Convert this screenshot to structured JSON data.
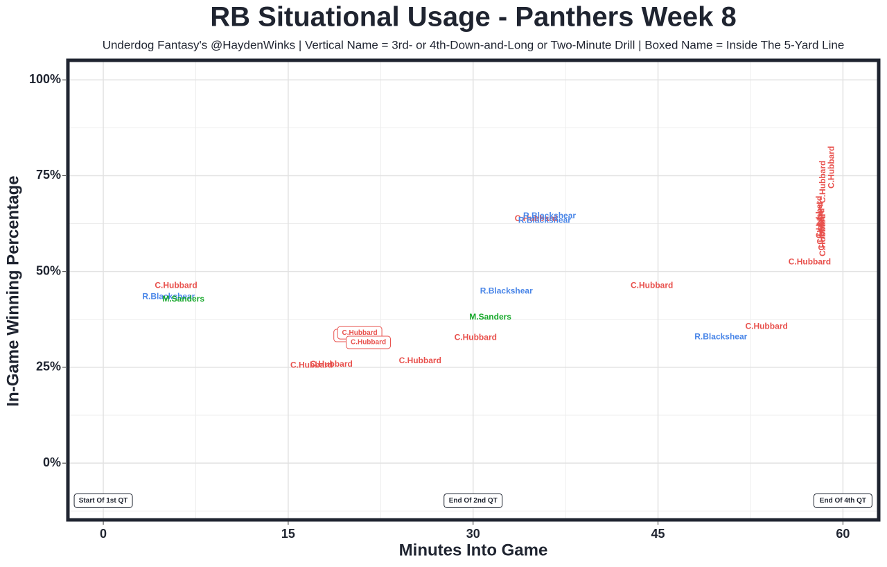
{
  "chart_data": {
    "type": "scatter",
    "title": "RB Situational Usage - Panthers Week 8",
    "subtitle": "Underdog Fantasy's @HaydenWinks | Vertical Name = 3rd- or 4th-Down-and-Long or Two-Minute Drill | Boxed Name = Inside The 5-Yard Line",
    "x_label": "Minutes Into Game",
    "y_label": "In-Game Winning Percentage",
    "xlim": [
      -2.87,
      62.9
    ],
    "ylim": [
      -14.8,
      105.1
    ],
    "xticks": [
      0,
      15,
      30,
      45,
      60
    ],
    "yticks": [
      {
        "value": 0,
        "label": "0%"
      },
      {
        "value": 25,
        "label": "25%"
      },
      {
        "value": 50,
        "label": "50%"
      },
      {
        "value": 75,
        "label": "75%"
      },
      {
        "value": 100,
        "label": "100%"
      }
    ],
    "minor_xticks": [
      7.5,
      22.5,
      37.5,
      52.5
    ],
    "minor_yticks": [
      -12.5,
      12.5,
      37.5,
      62.5,
      87.5
    ],
    "grid": true,
    "series": [
      {
        "name": "C.Hubbard",
        "color": "#e8504c",
        "x": [
          5.9,
          20.5,
          20.8,
          21.5,
          16.9,
          18.5,
          25.7,
          30.2,
          35.1,
          44.5,
          53.8,
          57.3,
          58.4,
          59.1,
          58.1,
          58.2,
          58.3,
          58.4
        ],
        "y": [
          46.3,
          33.3,
          34.0,
          31.5,
          25.5,
          25.7,
          26.6,
          32.7,
          63.7,
          46.3,
          35.6,
          52.4,
          73.4,
          77.2,
          64.2,
          62.6,
          61.0,
          59.5
        ],
        "vertical": [
          false,
          false,
          false,
          false,
          false,
          false,
          false,
          false,
          false,
          false,
          false,
          false,
          true,
          true,
          true,
          true,
          true,
          true
        ],
        "boxed": [
          false,
          true,
          true,
          true,
          false,
          false,
          false,
          false,
          false,
          false,
          false,
          false,
          false,
          false,
          false,
          false,
          false,
          false
        ]
      },
      {
        "name": "R.Blackshear",
        "color": "#4a86e8",
        "x": [
          5.3,
          32.7,
          36.2,
          35.8,
          50.1
        ],
        "y": [
          43.4,
          44.8,
          64.4,
          63.3,
          32.9
        ]
      },
      {
        "name": "M.Sanders",
        "color": "#16a82a",
        "x": [
          6.5,
          31.4
        ],
        "y": [
          42.7,
          38.0
        ]
      }
    ],
    "annotations": [
      {
        "text": "Start Of 1st QT",
        "x": 0,
        "y": -9.8
      },
      {
        "text": "End Of 2nd QT",
        "x": 30,
        "y": -9.8
      },
      {
        "text": "End Of 4th QT",
        "x": 60,
        "y": -9.8
      }
    ]
  }
}
